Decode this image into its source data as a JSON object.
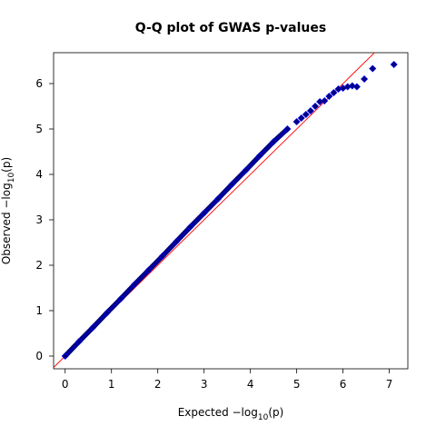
{
  "chart_data": {
    "type": "scatter",
    "title": "Q-Q plot of GWAS p-values",
    "xlabel": {
      "prefix": "Expected  −log",
      "sub": "10",
      "suffix": "(p)"
    },
    "ylabel": {
      "prefix": "Observed  −log",
      "sub": "10",
      "suffix": "(p)"
    },
    "xlim": [
      -0.25,
      7.4
    ],
    "ylim": [
      -0.28,
      6.68
    ],
    "xticks": [
      0,
      1,
      2,
      3,
      4,
      5,
      6,
      7
    ],
    "yticks": [
      0,
      1,
      2,
      3,
      4,
      5,
      6
    ],
    "grid": false,
    "reference_line": {
      "slope": 1,
      "intercept": 0,
      "color": "#ff0000"
    },
    "series": [
      {
        "marker": "diamond",
        "color": "#000080",
        "edge_color": "#0000ff",
        "x": [
          0.0,
          0.3,
          0.6,
          0.9,
          1.2,
          1.5,
          1.8,
          2.1,
          2.4,
          2.7,
          3.0,
          3.3,
          3.6,
          3.9,
          4.2,
          4.5,
          4.8,
          5.0,
          5.1,
          5.2,
          5.3,
          5.4,
          5.5,
          5.6,
          5.7,
          5.8,
          5.9,
          6.0,
          6.1,
          6.2,
          6.3,
          6.46,
          6.64,
          7.1
        ],
        "y": [
          0.0,
          0.32,
          0.63,
          0.95,
          1.26,
          1.58,
          1.89,
          2.2,
          2.52,
          2.84,
          3.15,
          3.46,
          3.78,
          4.09,
          4.41,
          4.72,
          5.0,
          5.16,
          5.24,
          5.32,
          5.4,
          5.5,
          5.6,
          5.62,
          5.72,
          5.8,
          5.88,
          5.9,
          5.93,
          5.95,
          5.93,
          6.1,
          6.33,
          6.42
        ]
      }
    ]
  }
}
